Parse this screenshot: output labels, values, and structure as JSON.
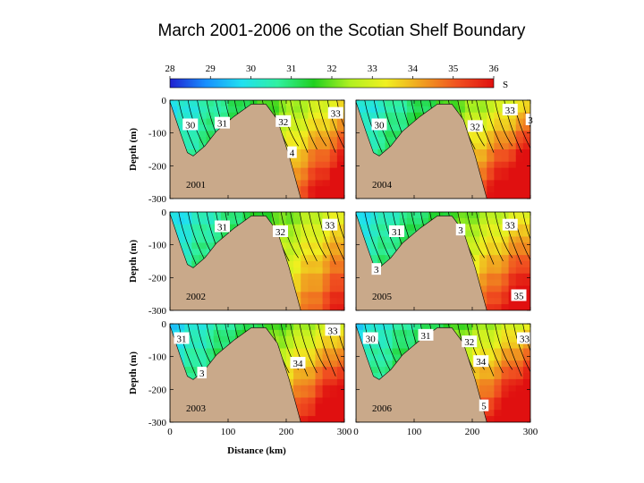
{
  "chart_data": {
    "type": "heatmap",
    "title": "March 2001-2006 on the Scotian Shelf Boundary",
    "colorbar": {
      "label": "S",
      "min": 28,
      "max": 36,
      "ticks": [
        "28",
        "29",
        "30",
        "31",
        "32",
        "33",
        "34",
        "35",
        "36"
      ],
      "colors": [
        "#2020d0",
        "#1890ff",
        "#20e0f0",
        "#30f0a0",
        "#20d020",
        "#b0f020",
        "#f0f020",
        "#f0a020",
        "#f05020",
        "#e01010"
      ]
    },
    "xlabel": "Distance (km)",
    "ylabel": "Depth (m)",
    "xlim": [
      0,
      300
    ],
    "ylim": [
      -300,
      0
    ],
    "xticks": [
      "0",
      "100",
      "200",
      "300"
    ],
    "yticks": [
      "0",
      "-100",
      "-200",
      "-300"
    ],
    "bathymetry_color": "#c9a98a",
    "panels": [
      {
        "year": "2001",
        "labels": [
          {
            "text": "30",
            "x": 35,
            "y": -75
          },
          {
            "text": "31",
            "x": 90,
            "y": -70
          },
          {
            "text": "32",
            "x": 195,
            "y": -65
          },
          {
            "text": "33",
            "x": 285,
            "y": -40
          },
          {
            "text": "4",
            "x": 210,
            "y": -160
          }
        ],
        "deep_salinity": 35.0
      },
      {
        "year": "2004",
        "labels": [
          {
            "text": "30",
            "x": 40,
            "y": -75
          },
          {
            "text": "32",
            "x": 205,
            "y": -80
          },
          {
            "text": "33",
            "x": 265,
            "y": -30
          },
          {
            "text": "3",
            "x": 300,
            "y": -60
          }
        ],
        "deep_salinity": 35.4
      },
      {
        "year": "2002",
        "labels": [
          {
            "text": "31",
            "x": 90,
            "y": -45
          },
          {
            "text": "32",
            "x": 190,
            "y": -60
          },
          {
            "text": "33",
            "x": 275,
            "y": -40
          }
        ],
        "deep_salinity": 34.3
      },
      {
        "year": "2005",
        "labels": [
          {
            "text": "31",
            "x": 70,
            "y": -60
          },
          {
            "text": "3",
            "x": 180,
            "y": -55
          },
          {
            "text": "33",
            "x": 265,
            "y": -40
          },
          {
            "text": "35",
            "x": 280,
            "y": -255
          },
          {
            "text": "3",
            "x": 35,
            "y": -175
          }
        ],
        "deep_salinity": 34.8
      },
      {
        "year": "2003",
        "labels": [
          {
            "text": "31",
            "x": 20,
            "y": -45
          },
          {
            "text": "33",
            "x": 280,
            "y": -20
          },
          {
            "text": "34",
            "x": 220,
            "y": -120
          },
          {
            "text": "3",
            "x": 55,
            "y": -150
          }
        ],
        "deep_salinity": 35.2
      },
      {
        "year": "2006",
        "labels": [
          {
            "text": "30",
            "x": 25,
            "y": -45
          },
          {
            "text": "32",
            "x": 195,
            "y": -55
          },
          {
            "text": "33",
            "x": 290,
            "y": -45
          },
          {
            "text": "34",
            "x": 215,
            "y": -115
          },
          {
            "text": "31",
            "x": 120,
            "y": -35
          },
          {
            "text": "5",
            "x": 220,
            "y": -250
          }
        ],
        "deep_salinity": 35.3
      }
    ]
  }
}
